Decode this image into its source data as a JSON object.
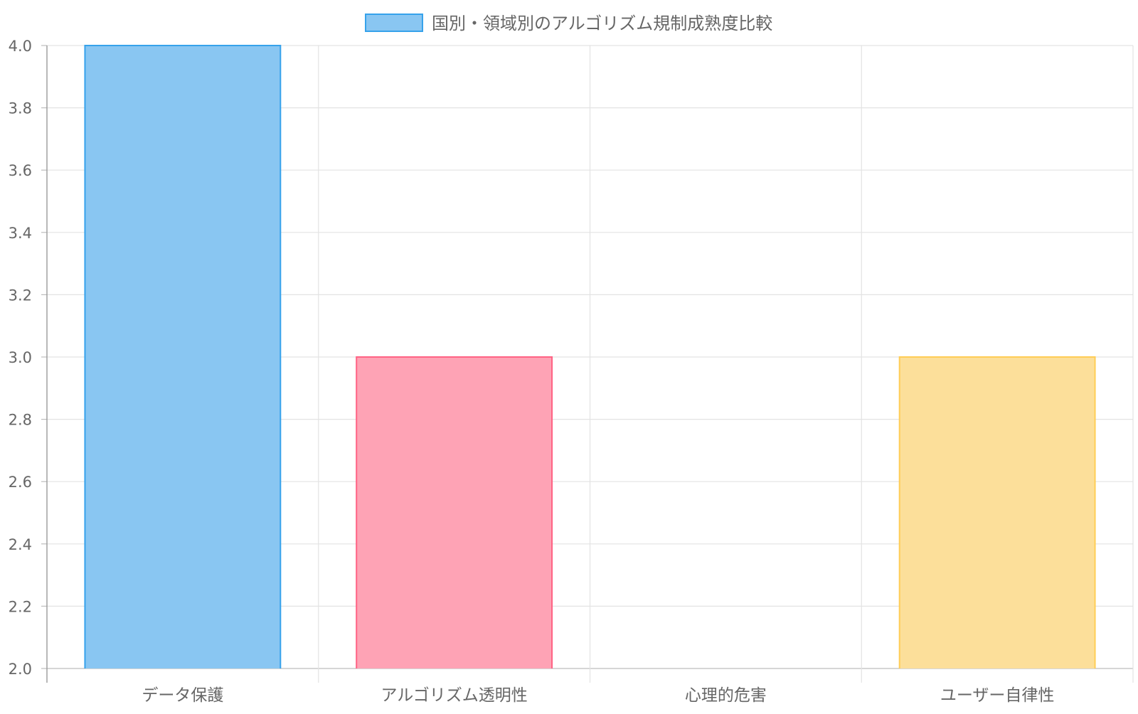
{
  "chart_data": {
    "type": "bar",
    "legend": {
      "label": "国別・領域別のアルゴリズム規制成熟度比較",
      "position": "top",
      "swatch_fill": "#89c6f2",
      "swatch_stroke": "#36a2eb"
    },
    "categories": [
      "データ保護",
      "アルゴリズム透明性",
      "心理的危害",
      "ユーザー自律性"
    ],
    "series": [
      {
        "name": "国別・領域別のアルゴリズム規制成熟度比較",
        "values": [
          4.0,
          3.0,
          2.0,
          3.0
        ]
      }
    ],
    "bar_colors": [
      {
        "fill": "#89c6f2",
        "stroke": "#36a2eb"
      },
      {
        "fill": "#fea3b5",
        "stroke": "#ff6384"
      },
      {
        "fill": "#a6e0e0",
        "stroke": "#4bc0c0"
      },
      {
        "fill": "#fcdf9a",
        "stroke": "#ffcd56"
      }
    ],
    "ylim": [
      2.0,
      4.0
    ],
    "yticks": [
      2.0,
      2.2,
      2.4,
      2.6,
      2.8,
      3.0,
      3.2,
      3.4,
      3.6,
      3.8,
      4.0
    ],
    "grid": true,
    "title": "",
    "xlabel": "",
    "ylabel": ""
  }
}
